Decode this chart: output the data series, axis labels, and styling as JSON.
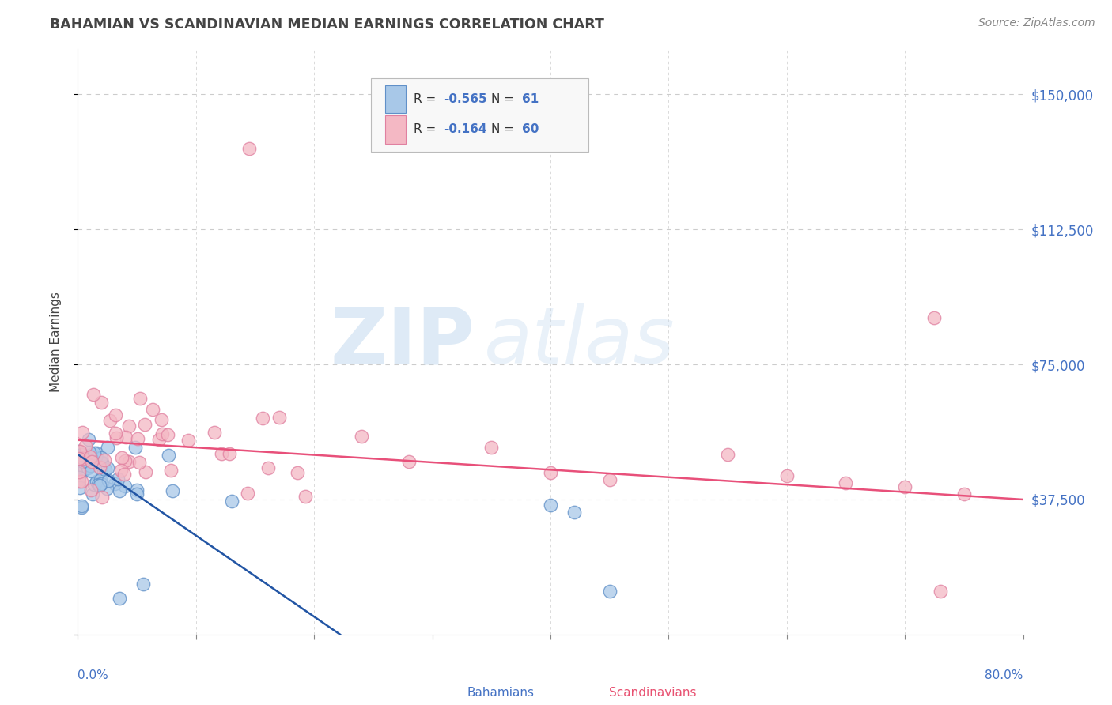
{
  "title": "BAHAMIAN VS SCANDINAVIAN MEDIAN EARNINGS CORRELATION CHART",
  "source": "Source: ZipAtlas.com",
  "ylabel": "Median Earnings",
  "xlim": [
    0.0,
    0.8
  ],
  "ylim": [
    0,
    162500
  ],
  "yticks": [
    0,
    37500,
    75000,
    112500,
    150000
  ],
  "ytick_labels": [
    "",
    "$37,500",
    "$75,000",
    "$112,500",
    "$150,000"
  ],
  "xtick_positions": [
    0.0,
    0.1,
    0.2,
    0.3,
    0.4,
    0.5,
    0.6,
    0.7,
    0.8
  ],
  "watermark_zip": "ZIP",
  "watermark_atlas": "atlas",
  "background_color": "#ffffff",
  "grid_color": "#cccccc",
  "title_color": "#444444",
  "axis_color": "#4472c4",
  "bah_scatter_color": "#a8c8e8",
  "bah_edge_color": "#6090c8",
  "bah_line_color": "#2255a4",
  "sca_scatter_color": "#f4b8c4",
  "sca_edge_color": "#e080a0",
  "sca_line_color": "#e8507a",
  "legend_r1": "R = -0.565",
  "legend_n1": "N =  61",
  "legend_r2": "R = -0.164",
  "legend_n2": "N = 60",
  "bah_line_x": [
    0.0,
    0.222
  ],
  "bah_line_y": [
    50000,
    0
  ],
  "sca_line_x": [
    0.0,
    0.8
  ],
  "sca_line_y": [
    54000,
    37500
  ]
}
